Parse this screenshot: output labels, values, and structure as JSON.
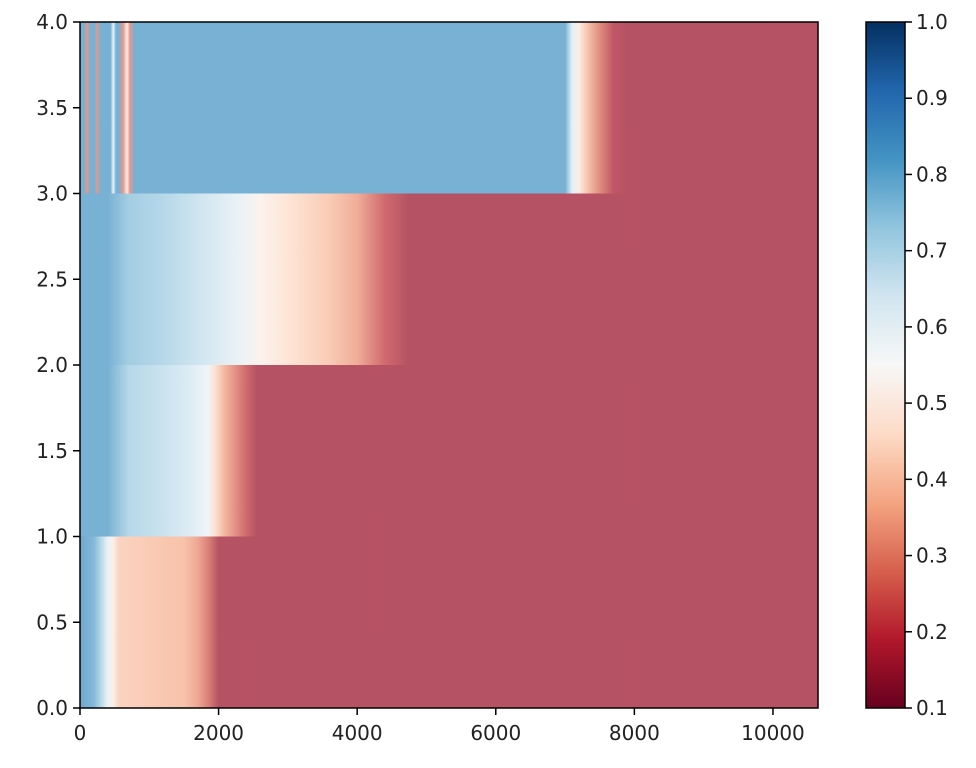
{
  "chart_data": {
    "type": "heatmap",
    "title": "",
    "xlabel": "",
    "ylabel": "",
    "xlim": [
      0,
      10650
    ],
    "ylim": [
      0,
      4
    ],
    "x_ticks": [
      0,
      2000,
      4000,
      6000,
      8000,
      10000
    ],
    "y_ticks": [
      0.0,
      0.5,
      1.0,
      1.5,
      2.0,
      2.5,
      3.0,
      3.5,
      4.0
    ],
    "grid": false,
    "colorbar": {
      "colormap": "RdBu",
      "range": [
        0.1,
        1.0
      ],
      "ticks": [
        0.1,
        0.2,
        0.3,
        0.4,
        0.5,
        0.6,
        0.7,
        0.8,
        0.9,
        1.0
      ],
      "colors": [
        "#67001f",
        "#b2182b",
        "#d6604d",
        "#f4a582",
        "#fddbc7",
        "#f7f7f7",
        "#d1e5f0",
        "#92c5de",
        "#4393c3",
        "#2166ac",
        "#053061"
      ]
    },
    "rows": [
      {
        "y_range": [
          0,
          1
        ],
        "profile": [
          [
            0,
            0.85
          ],
          [
            200,
            0.8
          ],
          [
            300,
            0.72
          ],
          [
            400,
            0.6
          ],
          [
            480,
            0.5
          ],
          [
            560,
            0.42
          ],
          [
            1000,
            0.4
          ],
          [
            1500,
            0.38
          ],
          [
            1700,
            0.33
          ],
          [
            1850,
            0.26
          ],
          [
            2000,
            0.16
          ],
          [
            10650,
            0.16
          ]
        ]
      },
      {
        "y_range": [
          1,
          2
        ],
        "profile": [
          [
            0,
            0.82
          ],
          [
            400,
            0.82
          ],
          [
            700,
            0.72
          ],
          [
            1200,
            0.68
          ],
          [
            1600,
            0.64
          ],
          [
            1850,
            0.58
          ],
          [
            1950,
            0.45
          ],
          [
            2100,
            0.35
          ],
          [
            2400,
            0.22
          ],
          [
            2550,
            0.16
          ],
          [
            10650,
            0.16
          ]
        ]
      },
      {
        "y_range": [
          2,
          3
        ],
        "profile": [
          [
            0,
            0.82
          ],
          [
            400,
            0.82
          ],
          [
            700,
            0.75
          ],
          [
            1200,
            0.72
          ],
          [
            1800,
            0.66
          ],
          [
            2300,
            0.6
          ],
          [
            2600,
            0.52
          ],
          [
            3000,
            0.46
          ],
          [
            3600,
            0.4
          ],
          [
            4000,
            0.34
          ],
          [
            4400,
            0.22
          ],
          [
            4750,
            0.16
          ],
          [
            10650,
            0.16
          ]
        ]
      },
      {
        "y_range": [
          3,
          4
        ],
        "profile": [
          [
            0,
            0.82
          ],
          [
            60,
            0.82
          ],
          [
            100,
            0.3
          ],
          [
            150,
            0.82
          ],
          [
            210,
            0.82
          ],
          [
            250,
            0.3
          ],
          [
            290,
            0.82
          ],
          [
            440,
            0.82
          ],
          [
            480,
            0.6
          ],
          [
            520,
            0.82
          ],
          [
            560,
            0.82
          ],
          [
            620,
            0.3
          ],
          [
            680,
            0.5
          ],
          [
            720,
            0.3
          ],
          [
            780,
            0.82
          ],
          [
            7000,
            0.82
          ],
          [
            7100,
            0.62
          ],
          [
            7200,
            0.5
          ],
          [
            7300,
            0.4
          ],
          [
            7500,
            0.28
          ],
          [
            7700,
            0.18
          ],
          [
            7900,
            0.16
          ],
          [
            10650,
            0.16
          ]
        ]
      }
    ]
  }
}
